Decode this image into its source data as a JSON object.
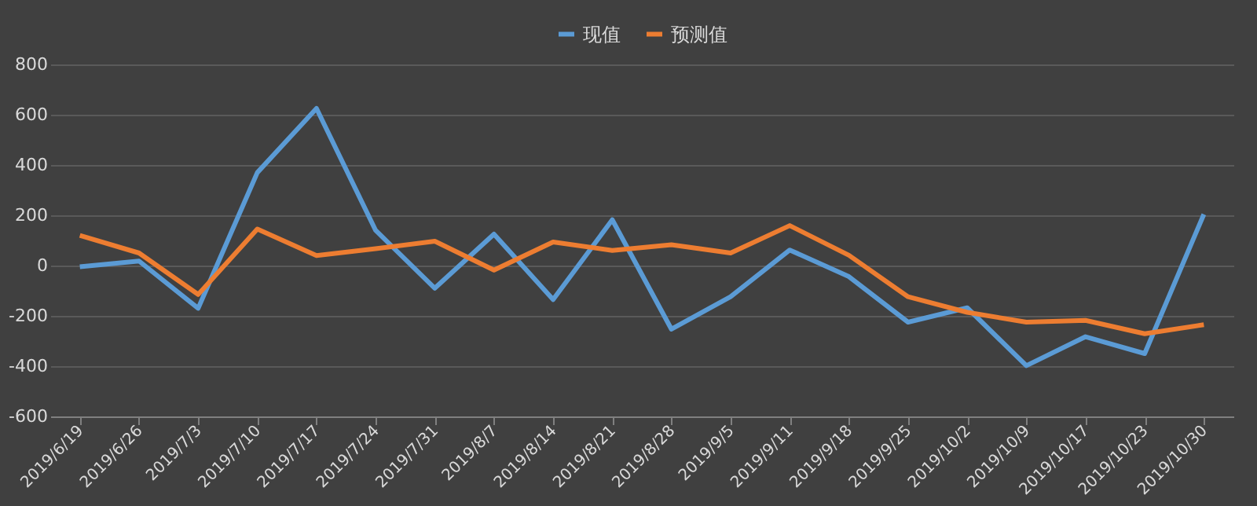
{
  "chart_data": {
    "type": "line",
    "categories": [
      "2019/6/19",
      "2019/6/26",
      "2019/7/3",
      "2019/7/10",
      "2019/7/17",
      "2019/7/24",
      "2019/7/31",
      "2019/8/7",
      "2019/8/14",
      "2019/8/21",
      "2019/8/28",
      "2019/9/5",
      "2019/9/11",
      "2019/9/18",
      "2019/9/25",
      "2019/10/2",
      "2019/10/9",
      "2019/10/17",
      "2019/10/23",
      "2019/10/30"
    ],
    "series": [
      {
        "name": "现值",
        "color": "#5b9bd5",
        "values": [
          -5,
          18,
          -170,
          370,
          625,
          140,
          -90,
          125,
          -135,
          182,
          -253,
          -124,
          62,
          -44,
          -225,
          -168,
          -398,
          -283,
          -350,
          204
        ]
      },
      {
        "name": "预测值",
        "color": "#ed7d31",
        "values": [
          120,
          50,
          -115,
          145,
          40,
          67,
          97,
          -18,
          94,
          60,
          83,
          50,
          159,
          41,
          -124,
          -186,
          -225,
          -218,
          -271,
          -235
        ]
      }
    ],
    "ylim": [
      -600,
      800
    ],
    "yticks": [
      -600,
      -400,
      -200,
      0,
      200,
      400,
      600,
      800
    ],
    "grid": "y",
    "legend": "top",
    "marker": "none",
    "line_style": "solid"
  }
}
